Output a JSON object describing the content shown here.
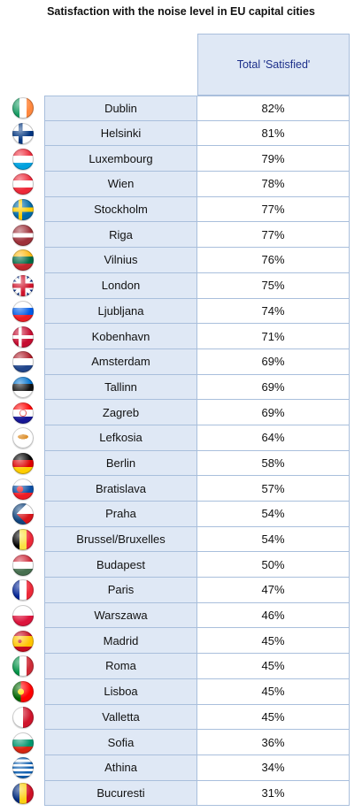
{
  "chart_data": {
    "type": "table",
    "title": "Satisfaction with the noise level in EU capital cities",
    "column_header": "Total 'Satisfied'",
    "rows": [
      {
        "city": "Dublin",
        "value": "82%",
        "flag": "ireland-flag-icon"
      },
      {
        "city": "Helsinki",
        "value": "81%",
        "flag": "finland-flag-icon"
      },
      {
        "city": "Luxembourg",
        "value": "79%",
        "flag": "luxembourg-flag-icon"
      },
      {
        "city": "Wien",
        "value": "78%",
        "flag": "austria-flag-icon"
      },
      {
        "city": "Stockholm",
        "value": "77%",
        "flag": "sweden-flag-icon"
      },
      {
        "city": "Riga",
        "value": "77%",
        "flag": "latvia-flag-icon"
      },
      {
        "city": "Vilnius",
        "value": "76%",
        "flag": "lithuania-flag-icon"
      },
      {
        "city": "London",
        "value": "75%",
        "flag": "uk-flag-icon"
      },
      {
        "city": "Ljubljana",
        "value": "74%",
        "flag": "slovenia-flag-icon"
      },
      {
        "city": "Kobenhavn",
        "value": "71%",
        "flag": "denmark-flag-icon"
      },
      {
        "city": "Amsterdam",
        "value": "69%",
        "flag": "netherlands-flag-icon"
      },
      {
        "city": "Tallinn",
        "value": "69%",
        "flag": "estonia-flag-icon"
      },
      {
        "city": "Zagreb",
        "value": "69%",
        "flag": "croatia-flag-icon"
      },
      {
        "city": "Lefkosia",
        "value": "64%",
        "flag": "cyprus-flag-icon"
      },
      {
        "city": "Berlin",
        "value": "58%",
        "flag": "germany-flag-icon"
      },
      {
        "city": "Bratislava",
        "value": "57%",
        "flag": "slovakia-flag-icon"
      },
      {
        "city": "Praha",
        "value": "54%",
        "flag": "czechia-flag-icon"
      },
      {
        "city": "Brussel/Bruxelles",
        "value": "54%",
        "flag": "belgium-flag-icon"
      },
      {
        "city": "Budapest",
        "value": "50%",
        "flag": "hungary-flag-icon"
      },
      {
        "city": "Paris",
        "value": "47%",
        "flag": "france-flag-icon"
      },
      {
        "city": "Warszawa",
        "value": "46%",
        "flag": "poland-flag-icon"
      },
      {
        "city": "Madrid",
        "value": "45%",
        "flag": "spain-flag-icon"
      },
      {
        "city": "Roma",
        "value": "45%",
        "flag": "italy-flag-icon"
      },
      {
        "city": "Lisboa",
        "value": "45%",
        "flag": "portugal-flag-icon"
      },
      {
        "city": "Valletta",
        "value": "45%",
        "flag": "malta-flag-icon"
      },
      {
        "city": "Sofia",
        "value": "36%",
        "flag": "bulgaria-flag-icon"
      },
      {
        "city": "Athina",
        "value": "34%",
        "flag": "greece-flag-icon"
      },
      {
        "city": "Bucuresti",
        "value": "31%",
        "flag": "romania-flag-icon"
      }
    ]
  },
  "colors": {
    "header_text": "#1c2f8a",
    "cell_fill": "#dfe8f5",
    "border": "#a9bfdc"
  }
}
